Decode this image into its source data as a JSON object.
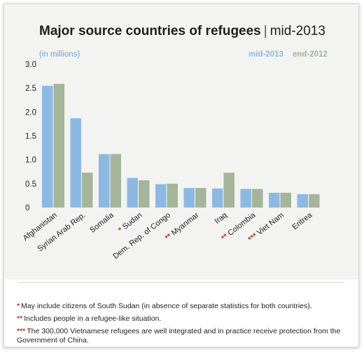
{
  "chart": {
    "title": "Major source countries of refugees",
    "title_suffix": "mid-2013",
    "unit_label": "(in millions)"
  },
  "colors": {
    "mid_2013": "#8cb9e3",
    "end_2012": "#a5b59a",
    "star": "#c0392b",
    "axis_text": "#222222"
  },
  "chart_data": {
    "type": "bar",
    "title": "Major source countries of refugees | mid-2013",
    "ylabel": "(in millions)",
    "ylim": [
      0,
      3.0
    ],
    "yticks": [
      "3.0",
      "2.5",
      "2.0",
      "1.5",
      "1.0",
      "0.5",
      "0"
    ],
    "grid": false,
    "legend": "top-right",
    "categories": [
      "Afghanistan",
      "Syrian Arab Rep.",
      "Somalia",
      "Sudan",
      "Dem. Rep. of Congo",
      "Myanmar",
      "Iraq",
      "Colombia",
      "Viet Nam",
      "Eritrea"
    ],
    "category_markers": [
      "",
      "",
      "",
      "*",
      "",
      "**",
      "",
      "**",
      "***",
      ""
    ],
    "series": [
      {
        "name": "mid-2013",
        "values": [
          2.55,
          1.87,
          1.12,
          0.62,
          0.49,
          0.41,
          0.4,
          0.39,
          0.31,
          0.28
        ]
      },
      {
        "name": "end-2012",
        "values": [
          2.59,
          0.73,
          1.12,
          0.57,
          0.5,
          0.41,
          0.73,
          0.39,
          0.31,
          0.28
        ]
      }
    ]
  },
  "notes": [
    {
      "marker": "*",
      "text": "May include citizens of South Sudan (in absence of separate statistics for both countries)."
    },
    {
      "marker": "**",
      "text": "Includes people in a refugee-like situation."
    },
    {
      "marker": "***",
      "text": "The 300,000 Vietnamese refugees are well integrated and in practice receive protection from the Government of China."
    }
  ]
}
